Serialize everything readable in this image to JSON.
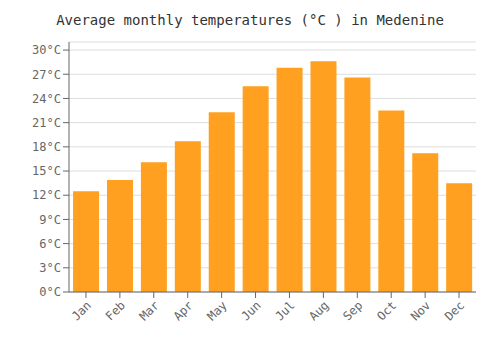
{
  "chart_data": {
    "type": "bar",
    "title": "Average monthly temperatures (°C ) in Medenine",
    "categories": [
      "Jan",
      "Feb",
      "Mar",
      "Apr",
      "May",
      "Jun",
      "Jul",
      "Aug",
      "Sep",
      "Oct",
      "Nov",
      "Dec"
    ],
    "values": [
      12.5,
      13.9,
      16.1,
      18.7,
      22.3,
      25.5,
      27.8,
      28.6,
      26.6,
      22.5,
      17.2,
      13.5
    ],
    "color": "#FFA020",
    "ylim": [
      0,
      31
    ],
    "yticks": [
      {
        "value": 0,
        "label": "0°C"
      },
      {
        "value": 3,
        "label": "3°C"
      },
      {
        "value": 6,
        "label": "6°C"
      },
      {
        "value": 9,
        "label": "9°C"
      },
      {
        "value": 12,
        "label": "12°C"
      },
      {
        "value": 15,
        "label": "15°C"
      },
      {
        "value": 18,
        "label": "18°C"
      },
      {
        "value": 21,
        "label": "21°C"
      },
      {
        "value": 24,
        "label": "24°C"
      },
      {
        "value": 27,
        "label": "27°C"
      },
      {
        "value": 30,
        "label": "30°C"
      }
    ],
    "grid": true
  }
}
